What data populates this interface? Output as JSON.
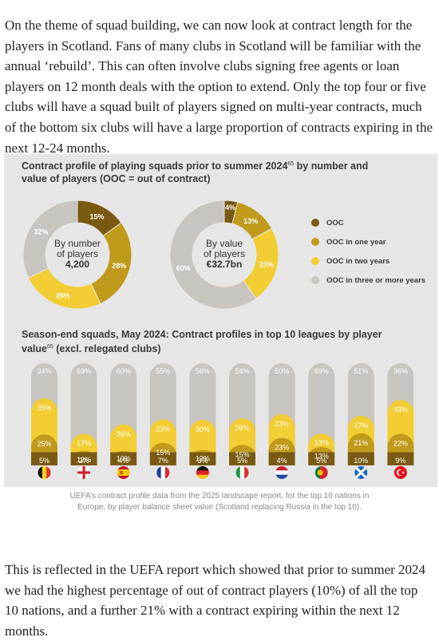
{
  "article": {
    "paragraph_1": "On the theme of squad building, we can now look at contract length for the players in Scotland. Fans of many clubs in Scotland will be familiar with the annual ‘rebuild’. This can often involve clubs signing free agents or loan players on 12 month deals with the option to extend. Only the top four or five clubs will have a squad built of players signed on multi-year contracts, much of the bottom six clubs will have a large proportion of contracts expiring in the next 12-24 months.",
    "caption": "UEFA’s contract profile data from the 2025 landscape report, for the top 10 nations in Europe, by player balance sheet value (Scotland replacing Russia in the top 10).",
    "paragraph_2": "This is reflected in the UEFA report which showed that prior to summer 2024 we had the highest percentage of out of contract players (10%) of all the top 10 nations, and a further 21% with a contract expiring within the next 12 months."
  },
  "colors": {
    "ooc": "#7a5a12",
    "one_year": "#c09a1a",
    "two_years": "#f2cd33",
    "three_plus": "#c8c4bf",
    "figure_bg": "#e6e6e6"
  },
  "chart_data": [
    {
      "type": "pie",
      "title": "Contract profile of playing squads prior to summer 2024",
      "title_superscript": "65",
      "title_suffix": " by number and value of players (OOC = out of contract)",
      "legend": [
        "OOC",
        "OOC in one year",
        "OOC in two years",
        "OOC in three or more years"
      ],
      "legend_placement": "right",
      "donuts": [
        {
          "center_lines": [
            "By number",
            "of players",
            "4,200"
          ],
          "slices": [
            {
              "category": "OOC",
              "value": 15,
              "label": "15%"
            },
            {
              "category": "OOC in one year",
              "value": 28,
              "label": "28%"
            },
            {
              "category": "OOC in two years",
              "value": 25,
              "label": "25%"
            },
            {
              "category": "OOC in three or more years",
              "value": 32,
              "label": "32%"
            }
          ]
        },
        {
          "center_lines": [
            "By value",
            "of players",
            "€32.7bn"
          ],
          "slices": [
            {
              "category": "OOC",
              "value": 4,
              "label": "4%"
            },
            {
              "category": "OOC in one year",
              "value": 13,
              "label": "13%"
            },
            {
              "category": "OOC in two years",
              "value": 23,
              "label": "23%"
            },
            {
              "category": "OOC in three or more years",
              "value": 60,
              "label": "60%"
            }
          ]
        }
      ]
    },
    {
      "type": "bar",
      "stacked": true,
      "title": "Season-end squads, May 2024: Contract profiles in top 10 leagues by player value",
      "title_superscript": "65",
      "title_suffix": " (excl. relegated clubs)",
      "categories": [
        "belgium-flag",
        "england-flag",
        "spain-flag",
        "france-flag",
        "germany-flag",
        "italy-flag",
        "netherlands-flag",
        "portugal-flag",
        "scotland-flag",
        "turkey-flag"
      ],
      "series": [
        {
          "name": "OOC",
          "values": [
            5,
            2,
            4,
            7,
            3,
            5,
            4,
            5,
            10,
            9
          ]
        },
        {
          "name": "OOC in one year",
          "values": [
            25,
            12,
            10,
            15,
            12,
            15,
            23,
            13,
            21,
            22
          ]
        },
        {
          "name": "OOC in two years",
          "values": [
            35,
            17,
            26,
            23,
            30,
            26,
            23,
            13,
            17,
            33
          ]
        },
        {
          "name": "OOC in three or more years",
          "values": [
            34,
            69,
            60,
            55,
            56,
            54,
            50,
            69,
            51,
            36
          ]
        }
      ]
    }
  ]
}
